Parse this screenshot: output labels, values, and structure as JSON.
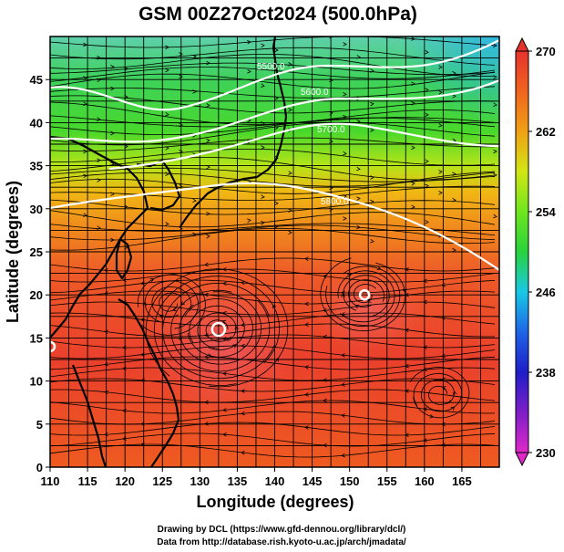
{
  "title": "GSM 00Z27Oct2024 (500.0hPa)",
  "axes": {
    "xlabel": "Longitude (degrees)",
    "ylabel": "Latitude  (degrees)",
    "xlim": [
      110,
      170
    ],
    "ylim": [
      0,
      50
    ],
    "xticks": [
      "110",
      "115",
      "120",
      "125",
      "130",
      "135",
      "140",
      "145",
      "150",
      "155",
      "160",
      "165"
    ],
    "yticks": [
      "0",
      "5",
      "10",
      "15",
      "20",
      "25",
      "30",
      "35",
      "40",
      "45"
    ],
    "grid": true
  },
  "colorbar": {
    "min": 230,
    "max": 270,
    "ticks": [
      "230",
      "238",
      "246",
      "254",
      "262",
      "270"
    ],
    "colors": [
      "#e028c8",
      "#7e1ec8",
      "#1e1ec8",
      "#1e64e6",
      "#18c8e6",
      "#28d23c",
      "#6ee61e",
      "#d2e614",
      "#f0a014",
      "#f0641e",
      "#e6322d"
    ]
  },
  "contours": {
    "labels": [
      "5500.0",
      "5600.0",
      "5700.0",
      "5800.0"
    ]
  },
  "storm_centers": [
    {
      "lon": 132.5,
      "lat": 16.0
    },
    {
      "lon": 152.0,
      "lat": 20.0
    },
    {
      "lon": 110.0,
      "lat": 14.0
    }
  ],
  "credits": {
    "line1": "Drawing by DCL (https://www.gfd-dennou.org/library/dcl/)",
    "line2": "Data from http://database.rish.kyoto-u.ac.jp/arch/jmadata/"
  }
}
